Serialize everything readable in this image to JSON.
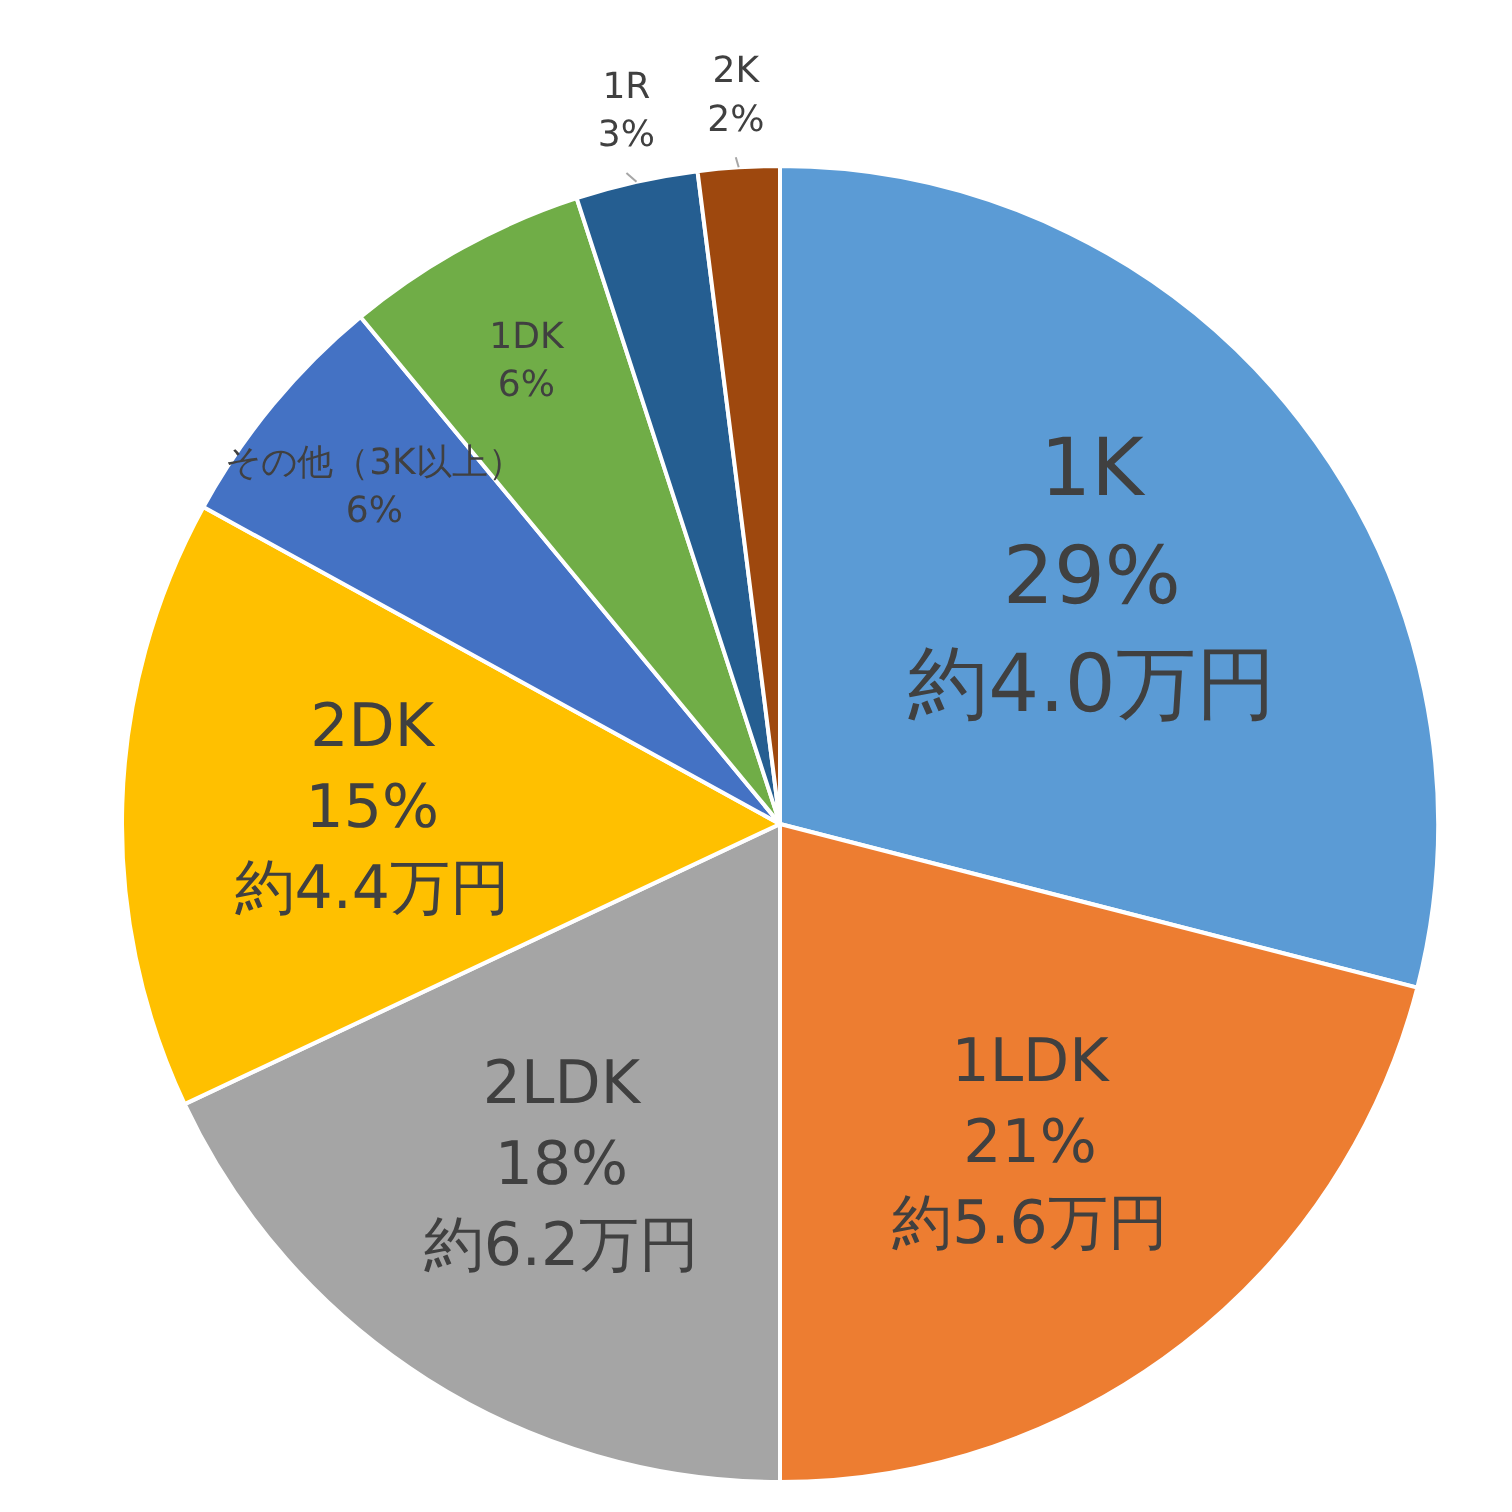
{
  "chart_data": {
    "type": "pie",
    "categories": [
      "1K",
      "1LDK",
      "2LDK",
      "2DK",
      "その他（3K以上）",
      "1DK",
      "1R",
      "2K"
    ],
    "values": [
      29,
      21,
      18,
      15,
      6,
      6,
      3,
      2
    ],
    "colors": [
      "#5b9bd5",
      "#ed7d31",
      "#a5a5a5",
      "#ffc000",
      "#4472c4",
      "#70ad47",
      "#255e91",
      "#9e480e"
    ],
    "value_labels": [
      "29%",
      "21%",
      "18%",
      "15%",
      "6%",
      "6%",
      "3%",
      "2%"
    ],
    "legend": false,
    "annotations": [
      {
        "text": "約4.0万円",
        "x": "1K"
      },
      {
        "text": "約5.6万円",
        "x": "1LDK"
      },
      {
        "text": "約6.2万円",
        "x": "2LDK"
      },
      {
        "text": "約4.4万円",
        "x": "2DK"
      }
    ]
  }
}
